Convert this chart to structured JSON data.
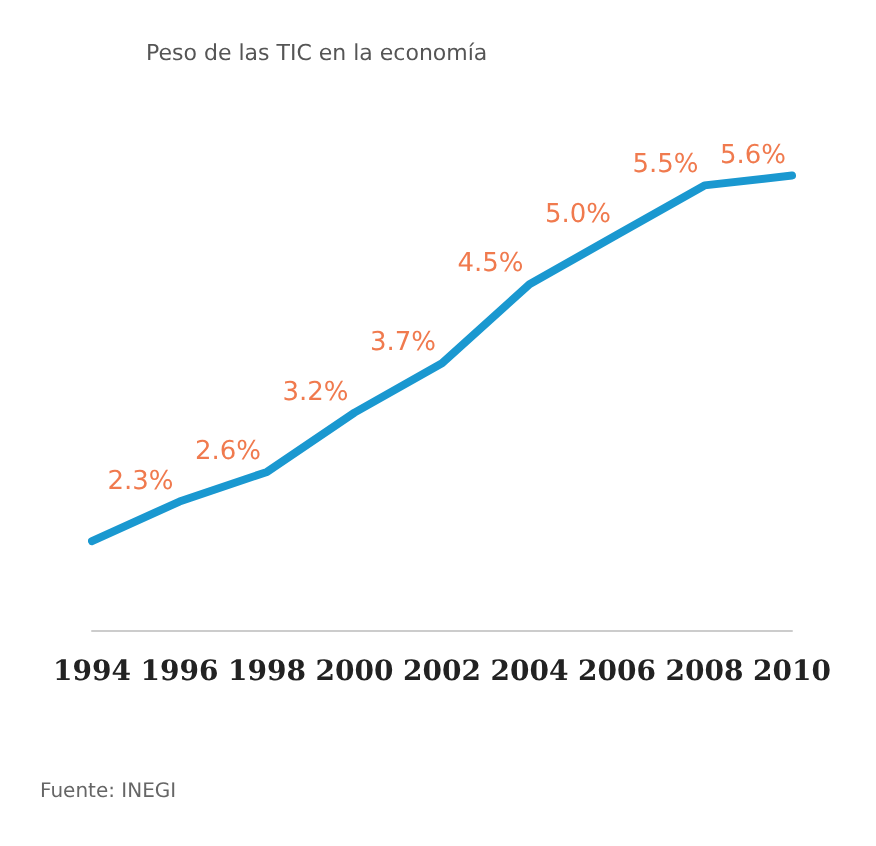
{
  "chart_data": {
    "type": "line",
    "title": "Peso de las TIC en la economía",
    "categories": [
      "1994",
      "1996",
      "1998",
      "2000",
      "2002",
      "2004",
      "2006",
      "2008",
      "2010"
    ],
    "series": [
      {
        "color": "#1a98d0",
        "values": [
          1.9,
          2.3,
          2.6,
          3.2,
          3.7,
          4.5,
          5.0,
          5.5,
          5.6
        ],
        "value_labels": [
          null,
          "2.3%",
          "2.6%",
          "3.2%",
          "3.7%",
          "4.5%",
          "5.0%",
          "5.5%",
          "5.6%"
        ]
      }
    ],
    "tick_labels": "x",
    "grid": false,
    "marker": "none",
    "line_style": "solid",
    "annotations": [
      "Fuente: INEGI"
    ]
  }
}
